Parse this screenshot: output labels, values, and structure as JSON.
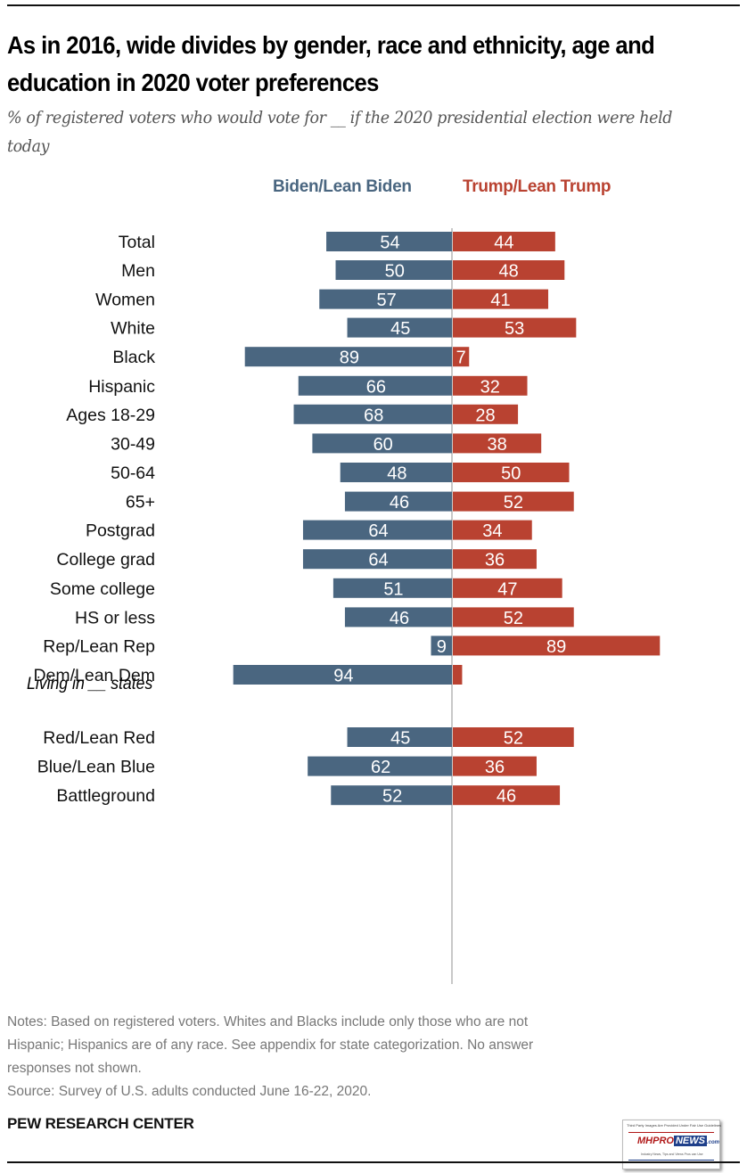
{
  "chart_data": {
    "type": "bar",
    "orientation": "horizontal-diverging",
    "title": "As in 2016, wide divides by gender, race and ethnicity, age and education in 2020 voter preferences",
    "subtitle": "% of registered voters who would vote for __ if the 2020 presidential election were held today",
    "legend": {
      "placement": "top",
      "entries": [
        {
          "name": "Biden/Lean Biden",
          "color": "#4a6680"
        },
        {
          "name": "Trump/Lean Trump",
          "color": "#b94231"
        }
      ]
    },
    "xlabel": "",
    "ylabel": "",
    "xlim": [
      0,
      100
    ],
    "grid": false,
    "groups": [
      {
        "heading": "",
        "categories": [
          "Total"
        ]
      },
      {
        "heading": "",
        "categories": [
          "Men",
          "Women"
        ]
      },
      {
        "heading": "",
        "categories": [
          "White",
          "Black",
          "Hispanic"
        ]
      },
      {
        "heading": "",
        "categories": [
          "Ages 18-29",
          "30-49",
          "50-64",
          "65+"
        ]
      },
      {
        "heading": "",
        "categories": [
          "Postgrad",
          "College grad",
          "Some college",
          "HS or less"
        ]
      },
      {
        "heading": "",
        "categories": [
          "Rep/Lean Rep",
          "Dem/Lean Dem"
        ]
      },
      {
        "heading": "Living in __ states",
        "categories": [
          "Red/Lean Red",
          "Blue/Lean Blue",
          "Battleground"
        ]
      }
    ],
    "categories": [
      "Total",
      "Men",
      "Women",
      "White",
      "Black",
      "Hispanic",
      "Ages 18-29",
      "30-49",
      "50-64",
      "65+",
      "Postgrad",
      "College grad",
      "Some college",
      "HS or less",
      "Rep/Lean Rep",
      "Dem/Lean Dem",
      "Red/Lean Red",
      "Blue/Lean Blue",
      "Battleground"
    ],
    "series": [
      {
        "name": "Biden/Lean Biden",
        "direction": "left",
        "values": [
          54,
          50,
          57,
          45,
          89,
          66,
          68,
          60,
          48,
          46,
          64,
          64,
          51,
          46,
          9,
          94,
          45,
          62,
          52
        ],
        "labels": [
          "54",
          "50",
          "57",
          "45",
          "89",
          "66",
          "68",
          "60",
          "48",
          "46",
          "64",
          "64",
          "51",
          "46",
          "9",
          "94",
          "45",
          "62",
          "52"
        ]
      },
      {
        "name": "Trump/Lean Trump",
        "direction": "right",
        "values": [
          44,
          48,
          41,
          53,
          7,
          32,
          28,
          38,
          50,
          52,
          34,
          36,
          47,
          52,
          89,
          4,
          52,
          36,
          46
        ],
        "labels": [
          "44",
          "48",
          "41",
          "53",
          "7",
          "32",
          "28",
          "38",
          "50",
          "52",
          "34",
          "36",
          "47",
          "52",
          "89",
          "",
          "52",
          "36",
          "46"
        ]
      }
    ],
    "notes": [
      "Notes: Based on registered voters. Whites and Blacks include only those who are not",
      "Hispanic; Hispanics are of any race. See appendix for state categorization. No answer",
      "responses not shown.",
      "Source: Survey of U.S. adults conducted June 16-22, 2020."
    ],
    "source_org": "PEW RESEARCH CENTER"
  },
  "header": {
    "title": "As in 2016, wide divides by gender, race and ethnicity, age and education in 2020 voter preferences",
    "subtitle": "% of registered voters who would vote for __ if the 2020 presidential election were held today"
  },
  "legend": {
    "biden": "Biden/Lean Biden",
    "trump": "Trump/Lean Trump"
  },
  "footer": {
    "notes_line1": "Notes: Based on registered voters. Whites and Blacks include only those who are not",
    "notes_line2": "Hispanic; Hispanics are of any race. See appendix for state categorization. No answer",
    "notes_line3": "responses not shown.",
    "source": "Source: Survey of U.S. adults conducted June 16-22, 2020.",
    "brand": "PEW RESEARCH CENTER"
  },
  "watermark": {
    "top_text": "Third Party Images Are Provided Under Fair Use Guidelines",
    "logo_mh": "MHPRO",
    "logo_news": "NEWS",
    "logo_com": ".com",
    "tagline": "Industry News, Tips and Views Pros can Use"
  }
}
